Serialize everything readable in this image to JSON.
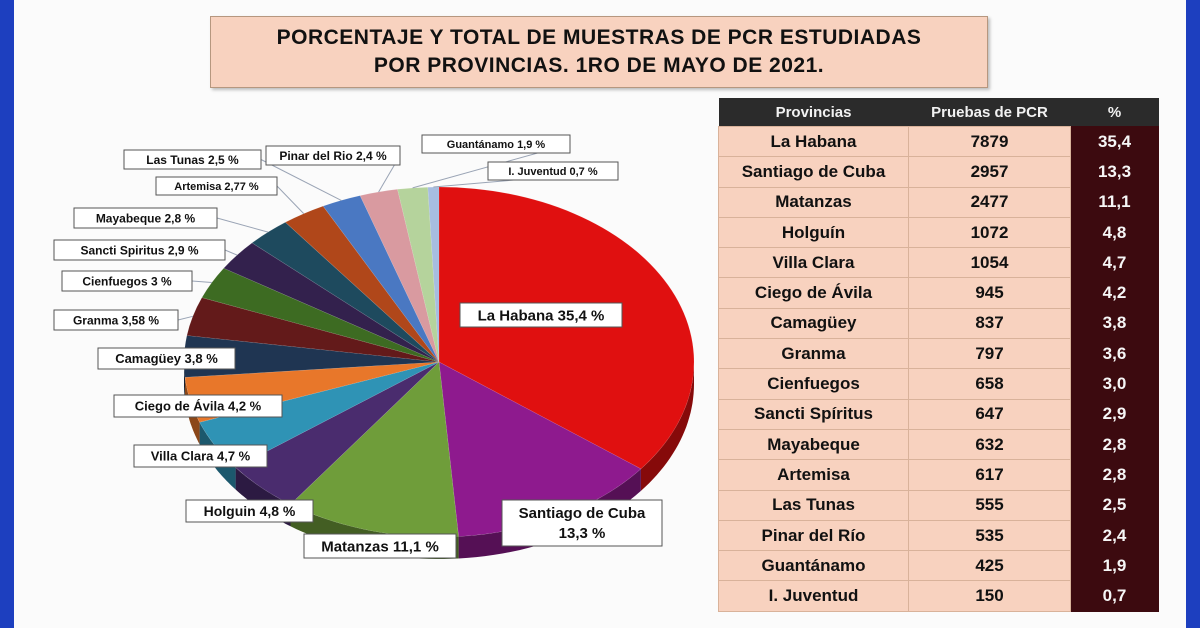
{
  "title": {
    "line1": "PORCENTAJE Y TOTAL DE MUESTRAS DE PCR ESTUDIADAS",
    "line2": "POR PROVINCIAS. 1RO DE MAYO DE 2021."
  },
  "chart_data": {
    "type": "pie",
    "slices": [
      {
        "label": "La Habana 35,4 %",
        "value": 35.4,
        "color": "#e01010"
      },
      {
        "label": "Santiago de Cuba 13,3 %",
        "value": 13.3,
        "color": "#8e1a8e"
      },
      {
        "label": "Matanzas 11,1 %",
        "value": 11.1,
        "color": "#6f9d3a"
      },
      {
        "label": "Holguin 4,8 %",
        "value": 4.8,
        "color": "#4a2c6e"
      },
      {
        "label": "Villa Clara 4,7 %",
        "value": 4.7,
        "color": "#2f93b5"
      },
      {
        "label": "Ciego de Ávila 4,2 %",
        "value": 4.2,
        "color": "#e8772a"
      },
      {
        "label": "Camagüey 3,8 %",
        "value": 3.8,
        "color": "#1f3552"
      },
      {
        "label": "Granma 3,58 %",
        "value": 3.58,
        "color": "#631a1a"
      },
      {
        "label": "Cienfuegos 3 %",
        "value": 3.0,
        "color": "#3d6b22"
      },
      {
        "label": "Sancti Spiritus 2,9 %",
        "value": 2.9,
        "color": "#33214d"
      },
      {
        "label": "Mayabeque 2,8 %",
        "value": 2.8,
        "color": "#1e4a5e"
      },
      {
        "label": "Artemisa 2,77 %",
        "value": 2.77,
        "color": "#b0471a"
      },
      {
        "label": "Las Tunas 2,5 %",
        "value": 2.5,
        "color": "#4a78c2"
      },
      {
        "label": "Pinar del Rio 2,4 %",
        "value": 2.4,
        "color": "#d99aa0"
      },
      {
        "label": "Guantánamo 1,9 %",
        "value": 1.9,
        "color": "#b5d39c"
      },
      {
        "label": "I. Juventud 0,7 %",
        "value": 0.7,
        "color": "#a7bde0"
      }
    ]
  },
  "table": {
    "headers": [
      "Provincias",
      "Pruebas de PCR",
      "%"
    ],
    "rows": [
      [
        "La Habana",
        "7879",
        "35,4"
      ],
      [
        "Santiago de Cuba",
        "2957",
        "13,3"
      ],
      [
        "Matanzas",
        "2477",
        "11,1"
      ],
      [
        "Holguín",
        "1072",
        "4,8"
      ],
      [
        "Villa Clara",
        "1054",
        "4,7"
      ],
      [
        "Ciego de Ávila",
        "945",
        "4,2"
      ],
      [
        "Camagüey",
        "837",
        "3,8"
      ],
      [
        "Granma",
        "797",
        "3,6"
      ],
      [
        "Cienfuegos",
        "658",
        "3,0"
      ],
      [
        "Sancti Spíritus",
        "647",
        "2,9"
      ],
      [
        "Mayabeque",
        "632",
        "2,8"
      ],
      [
        "Artemisa",
        "617",
        "2,8"
      ],
      [
        "Las Tunas",
        "555",
        "2,5"
      ],
      [
        "Pinar del Río",
        "535",
        "2,4"
      ],
      [
        "Guantánamo",
        "425",
        "1,9"
      ],
      [
        "I.  Juventud",
        "150",
        "0,7"
      ]
    ]
  }
}
